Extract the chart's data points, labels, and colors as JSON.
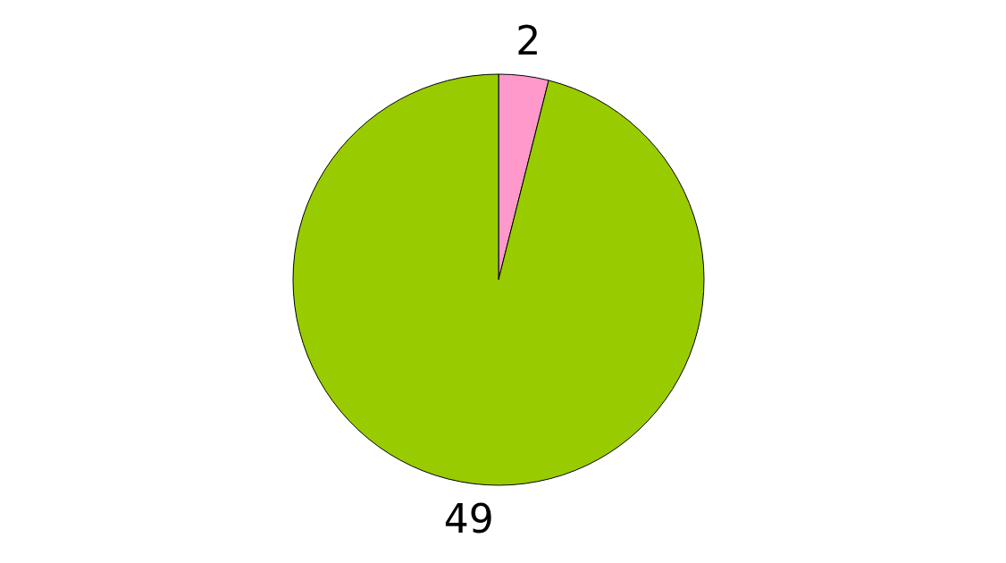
{
  "chart_data": {
    "type": "pie",
    "categories": [
      null,
      null
    ],
    "values": [
      2,
      49
    ],
    "colors": [
      "#ff99cc",
      "#99cc00"
    ],
    "data_labels": true
  }
}
